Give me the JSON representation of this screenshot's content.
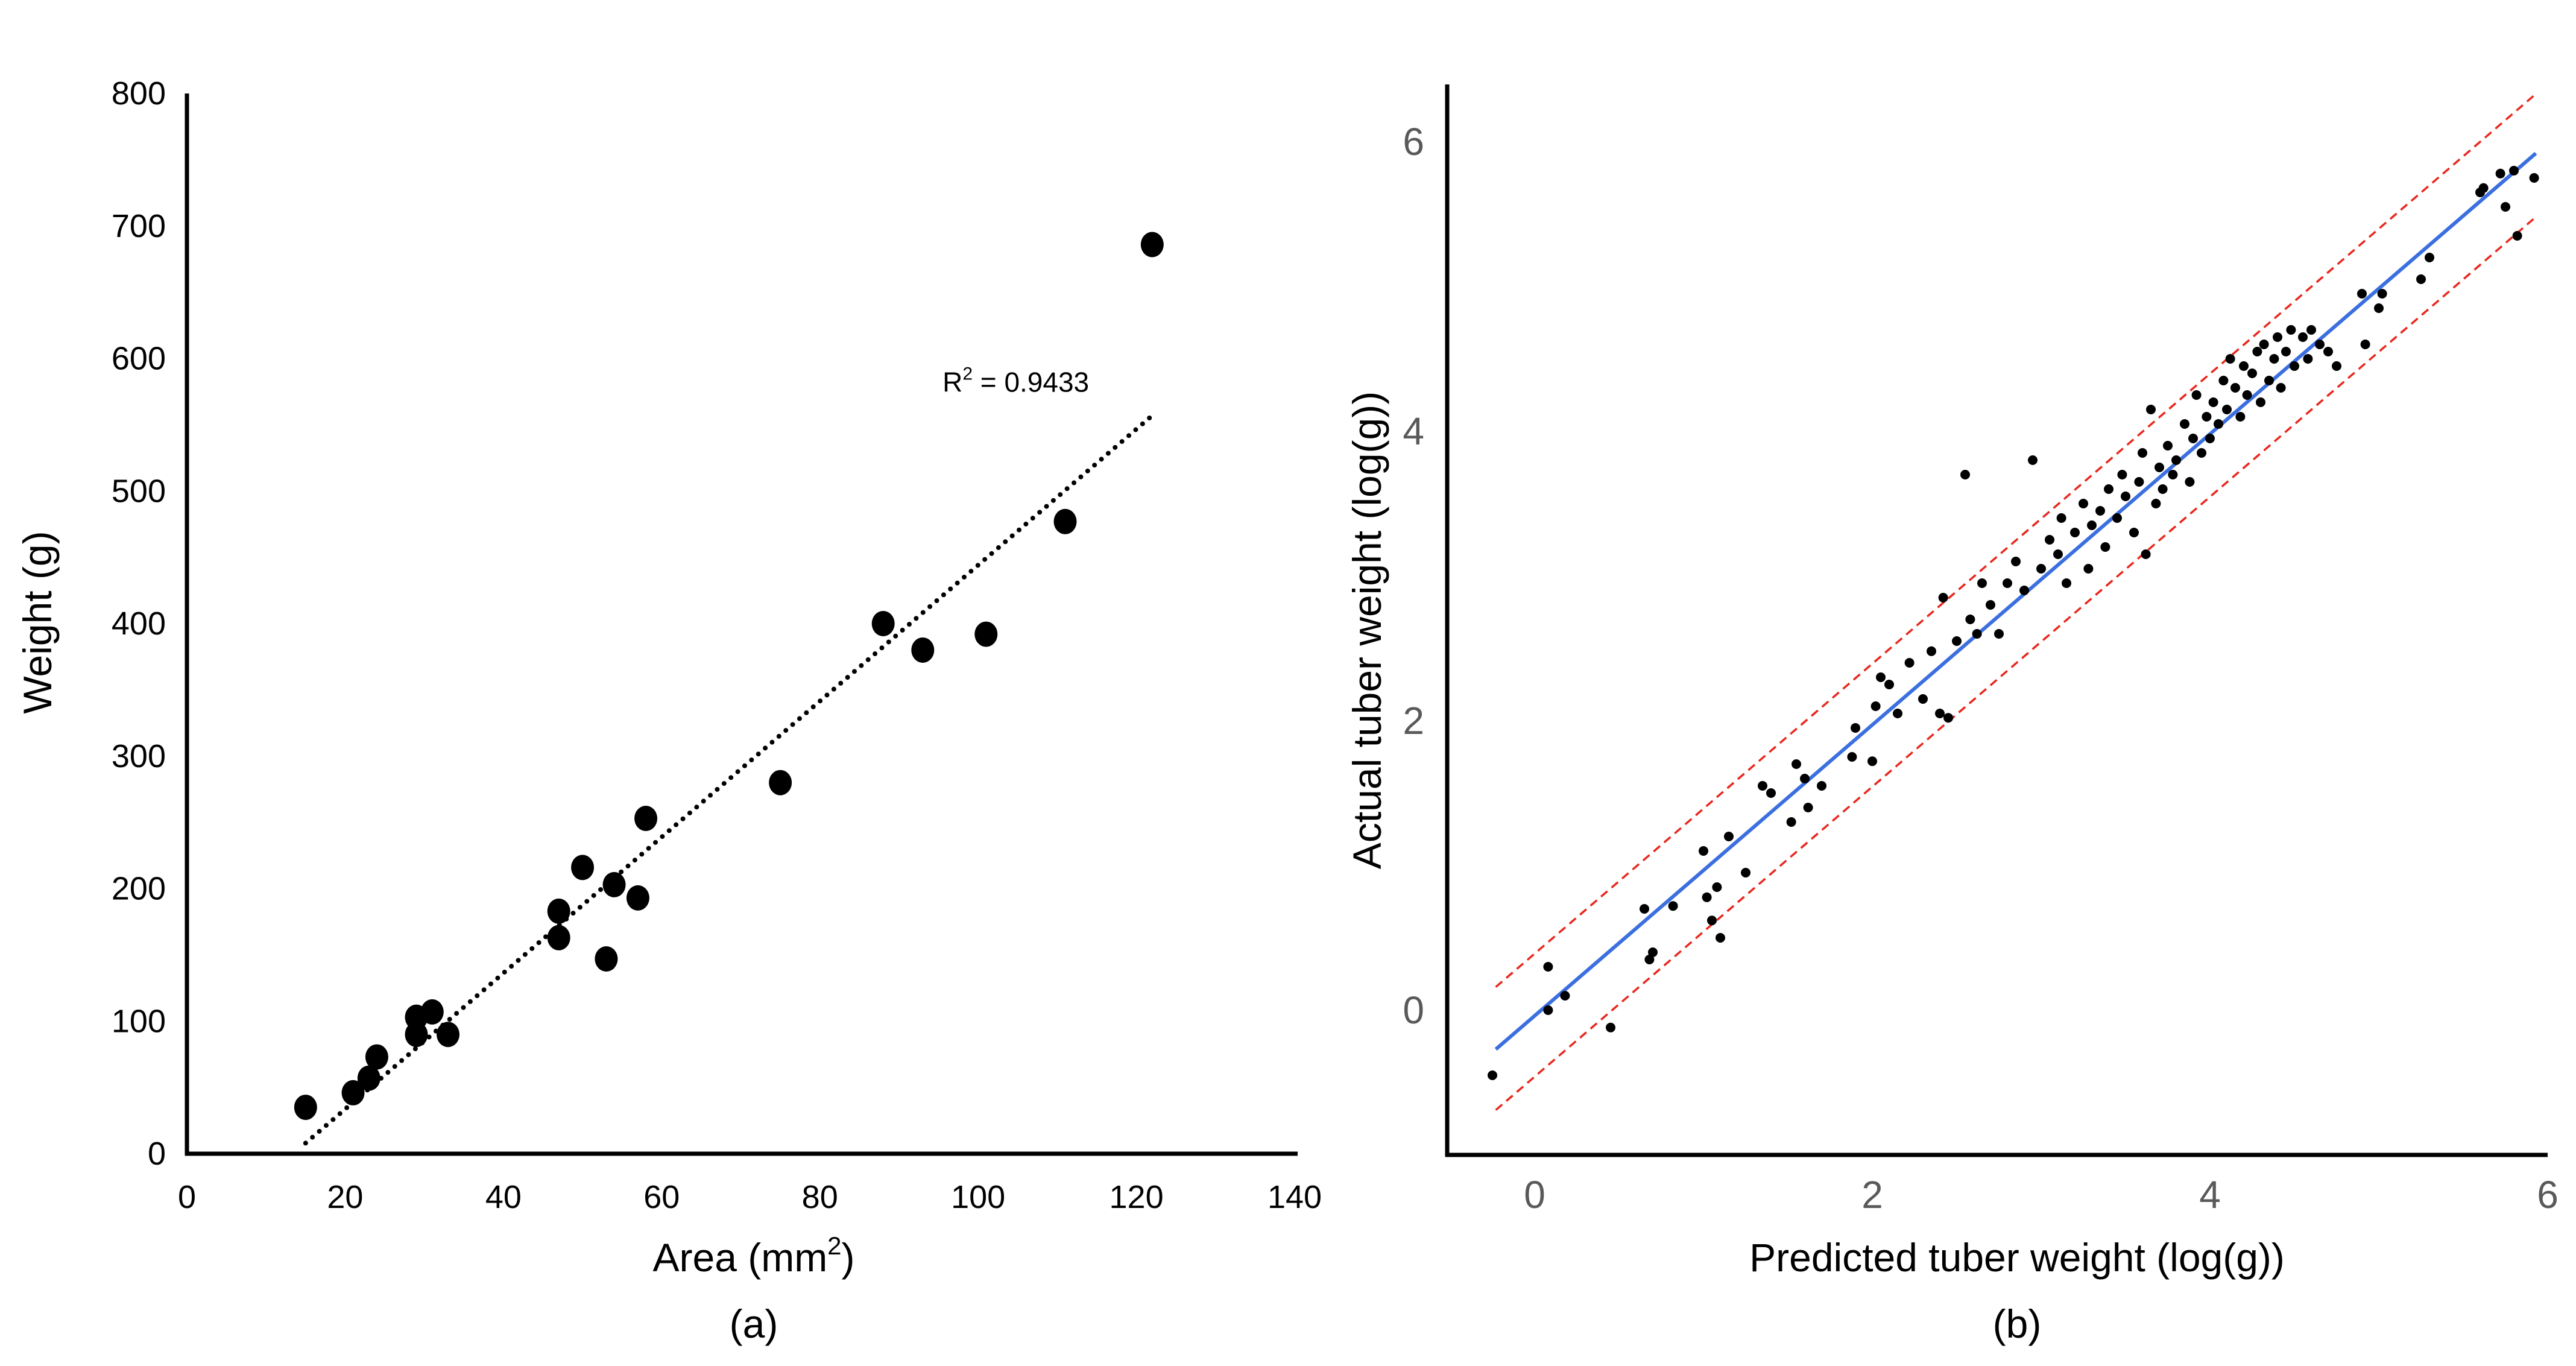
{
  "chart_data": [
    {
      "panel": "(a)",
      "type": "scatter",
      "title": "",
      "xlabel_main": "Area (mm",
      "xlabel_sup": "2",
      "xlabel_close": ")",
      "ylabel": "Weight (g)",
      "xlim": [
        0,
        140
      ],
      "ylim": [
        0,
        800
      ],
      "xticks": [
        0,
        20,
        40,
        60,
        80,
        100,
        120,
        140
      ],
      "yticks": [
        0,
        100,
        200,
        300,
        400,
        500,
        600,
        700,
        800
      ],
      "points": [
        [
          15,
          35
        ],
        [
          21,
          46
        ],
        [
          23,
          57
        ],
        [
          24,
          73
        ],
        [
          29,
          103
        ],
        [
          29,
          90
        ],
        [
          31,
          107
        ],
        [
          33,
          90
        ],
        [
          47,
          183
        ],
        [
          47,
          163
        ],
        [
          50,
          216
        ],
        [
          53,
          147
        ],
        [
          54,
          203
        ],
        [
          57,
          193
        ],
        [
          58,
          253
        ],
        [
          75,
          280
        ],
        [
          88,
          400
        ],
        [
          93,
          380
        ],
        [
          101,
          392
        ],
        [
          111,
          477
        ],
        [
          122,
          686
        ]
      ],
      "trendline": {
        "x": [
          15,
          122
        ],
        "y": [
          8,
          557
        ],
        "style": "dotted"
      },
      "annotation": {
        "label": "R",
        "sup": "2",
        "value": " = 0.9433",
        "x": 95.5,
        "y": 575
      }
    },
    {
      "panel": "(b)",
      "type": "scatter",
      "title": "",
      "xlabel": "Predicted tuber weight (log(g))",
      "ylabel": "Actual tuber weight (log(g))",
      "xlim": [
        -0.55,
        6
      ],
      "ylim": [
        -0.95,
        6.4
      ],
      "xticks": [
        0,
        2,
        4,
        6
      ],
      "yticks": [
        0,
        2,
        4,
        6
      ],
      "fit_line": {
        "x": [
          -0.23,
          5.93
        ],
        "y": [
          -0.27,
          5.92
        ],
        "color": "#3b6fe0"
      },
      "upper_bound": {
        "x": [
          -0.23,
          5.93
        ],
        "y": [
          0.16,
          6.33
        ],
        "color": "#e8281e"
      },
      "lower_bound": {
        "x": [
          -0.23,
          5.93
        ],
        "y": [
          -0.69,
          5.48
        ],
        "color": "#e8281e"
      },
      "points": [
        [
          -0.25,
          -0.45
        ],
        [
          0.08,
          0.3
        ],
        [
          0.08,
          0.0
        ],
        [
          0.18,
          0.1
        ],
        [
          0.45,
          -0.12
        ],
        [
          0.65,
          0.7
        ],
        [
          0.68,
          0.35
        ],
        [
          0.7,
          0.4
        ],
        [
          0.82,
          0.72
        ],
        [
          1.0,
          1.1
        ],
        [
          1.02,
          0.78
        ],
        [
          1.05,
          0.62
        ],
        [
          1.08,
          0.85
        ],
        [
          1.1,
          0.5
        ],
        [
          1.15,
          1.2
        ],
        [
          1.25,
          0.95
        ],
        [
          1.35,
          1.55
        ],
        [
          1.4,
          1.5
        ],
        [
          1.52,
          1.3
        ],
        [
          1.55,
          1.7
        ],
        [
          1.6,
          1.6
        ],
        [
          1.62,
          1.4
        ],
        [
          1.7,
          1.55
        ],
        [
          1.88,
          1.75
        ],
        [
          1.9,
          1.95
        ],
        [
          2.0,
          1.72
        ],
        [
          2.02,
          2.1
        ],
        [
          2.05,
          2.3
        ],
        [
          2.1,
          2.25
        ],
        [
          2.15,
          2.05
        ],
        [
          2.22,
          2.4
        ],
        [
          2.3,
          2.15
        ],
        [
          2.35,
          2.48
        ],
        [
          2.4,
          2.05
        ],
        [
          2.42,
          2.85
        ],
        [
          2.45,
          2.02
        ],
        [
          2.5,
          2.55
        ],
        [
          2.55,
          3.7
        ],
        [
          2.58,
          2.7
        ],
        [
          2.62,
          2.6
        ],
        [
          2.65,
          2.95
        ],
        [
          2.7,
          2.8
        ],
        [
          2.75,
          2.6
        ],
        [
          2.8,
          2.95
        ],
        [
          2.85,
          3.1
        ],
        [
          2.9,
          2.9
        ],
        [
          2.95,
          3.8
        ],
        [
          3.0,
          3.05
        ],
        [
          3.05,
          3.25
        ],
        [
          3.1,
          3.15
        ],
        [
          3.12,
          3.4
        ],
        [
          3.15,
          2.95
        ],
        [
          3.2,
          3.3
        ],
        [
          3.25,
          3.5
        ],
        [
          3.28,
          3.05
        ],
        [
          3.3,
          3.35
        ],
        [
          3.35,
          3.45
        ],
        [
          3.38,
          3.2
        ],
        [
          3.4,
          3.6
        ],
        [
          3.45,
          3.4
        ],
        [
          3.48,
          3.7
        ],
        [
          3.5,
          3.55
        ],
        [
          3.55,
          3.3
        ],
        [
          3.58,
          3.65
        ],
        [
          3.6,
          3.85
        ],
        [
          3.62,
          3.15
        ],
        [
          3.65,
          4.15
        ],
        [
          3.68,
          3.5
        ],
        [
          3.7,
          3.75
        ],
        [
          3.72,
          3.6
        ],
        [
          3.75,
          3.9
        ],
        [
          3.78,
          3.7
        ],
        [
          3.8,
          3.8
        ],
        [
          3.85,
          4.05
        ],
        [
          3.88,
          3.65
        ],
        [
          3.9,
          3.95
        ],
        [
          3.92,
          4.25
        ],
        [
          3.95,
          3.85
        ],
        [
          3.98,
          4.1
        ],
        [
          4.0,
          3.95
        ],
        [
          4.02,
          4.2
        ],
        [
          4.05,
          4.05
        ],
        [
          4.08,
          4.35
        ],
        [
          4.1,
          4.15
        ],
        [
          4.12,
          4.5
        ],
        [
          4.15,
          4.3
        ],
        [
          4.18,
          4.1
        ],
        [
          4.2,
          4.45
        ],
        [
          4.22,
          4.25
        ],
        [
          4.25,
          4.4
        ],
        [
          4.28,
          4.55
        ],
        [
          4.3,
          4.2
        ],
        [
          4.32,
          4.6
        ],
        [
          4.35,
          4.35
        ],
        [
          4.38,
          4.5
        ],
        [
          4.4,
          4.65
        ],
        [
          4.42,
          4.3
        ],
        [
          4.45,
          4.55
        ],
        [
          4.48,
          4.7
        ],
        [
          4.5,
          4.45
        ],
        [
          4.55,
          4.65
        ],
        [
          4.58,
          4.5
        ],
        [
          4.6,
          4.7
        ],
        [
          4.65,
          4.6
        ],
        [
          4.7,
          4.55
        ],
        [
          4.75,
          4.45
        ],
        [
          4.9,
          4.95
        ],
        [
          4.92,
          4.6
        ],
        [
          5.0,
          4.85
        ],
        [
          5.02,
          4.95
        ],
        [
          5.25,
          5.05
        ],
        [
          5.3,
          5.2
        ],
        [
          5.6,
          5.65
        ],
        [
          5.62,
          5.68
        ],
        [
          5.72,
          5.78
        ],
        [
          5.75,
          5.55
        ],
        [
          5.8,
          5.8
        ],
        [
          5.82,
          5.35
        ],
        [
          5.92,
          5.75
        ]
      ]
    }
  ]
}
